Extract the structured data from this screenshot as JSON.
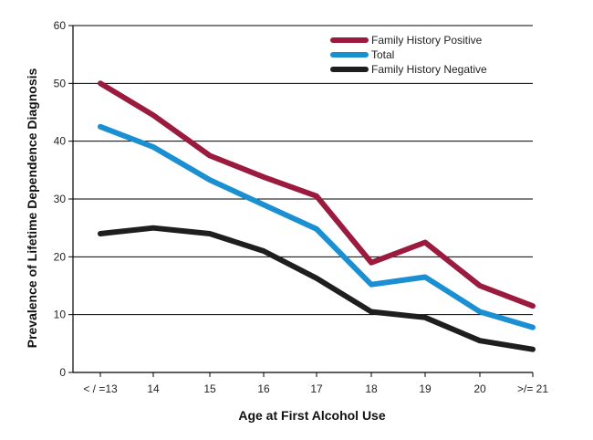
{
  "chart_data": {
    "type": "line",
    "xlabel": "Age at First Alcohol Use",
    "ylabel": "Prevalence of Lifetime Dependence Diagnosis",
    "categories": [
      "< / =13",
      "14",
      "15",
      "16",
      "17",
      "18",
      "19",
      "20",
      ">/= 21"
    ],
    "ylim": [
      0,
      60
    ],
    "yticks": [
      0,
      10,
      20,
      30,
      40,
      50,
      60
    ],
    "grid": true,
    "legend_position": "top-right",
    "series": [
      {
        "name": "Family History Positive",
        "color": "#9b1b3f",
        "values": [
          50,
          44.5,
          37.5,
          33.8,
          30.5,
          19,
          22.5,
          15,
          11.5
        ]
      },
      {
        "name": "Total",
        "color": "#1a8fd1",
        "values": [
          42.5,
          39,
          33.3,
          29,
          24.8,
          15.2,
          16.5,
          10.5,
          7.8
        ]
      },
      {
        "name": "Family History Negative",
        "color": "#1e1e1e",
        "values": [
          24,
          25,
          24,
          21,
          16.3,
          10.5,
          9.5,
          5.5,
          4
        ]
      }
    ]
  }
}
